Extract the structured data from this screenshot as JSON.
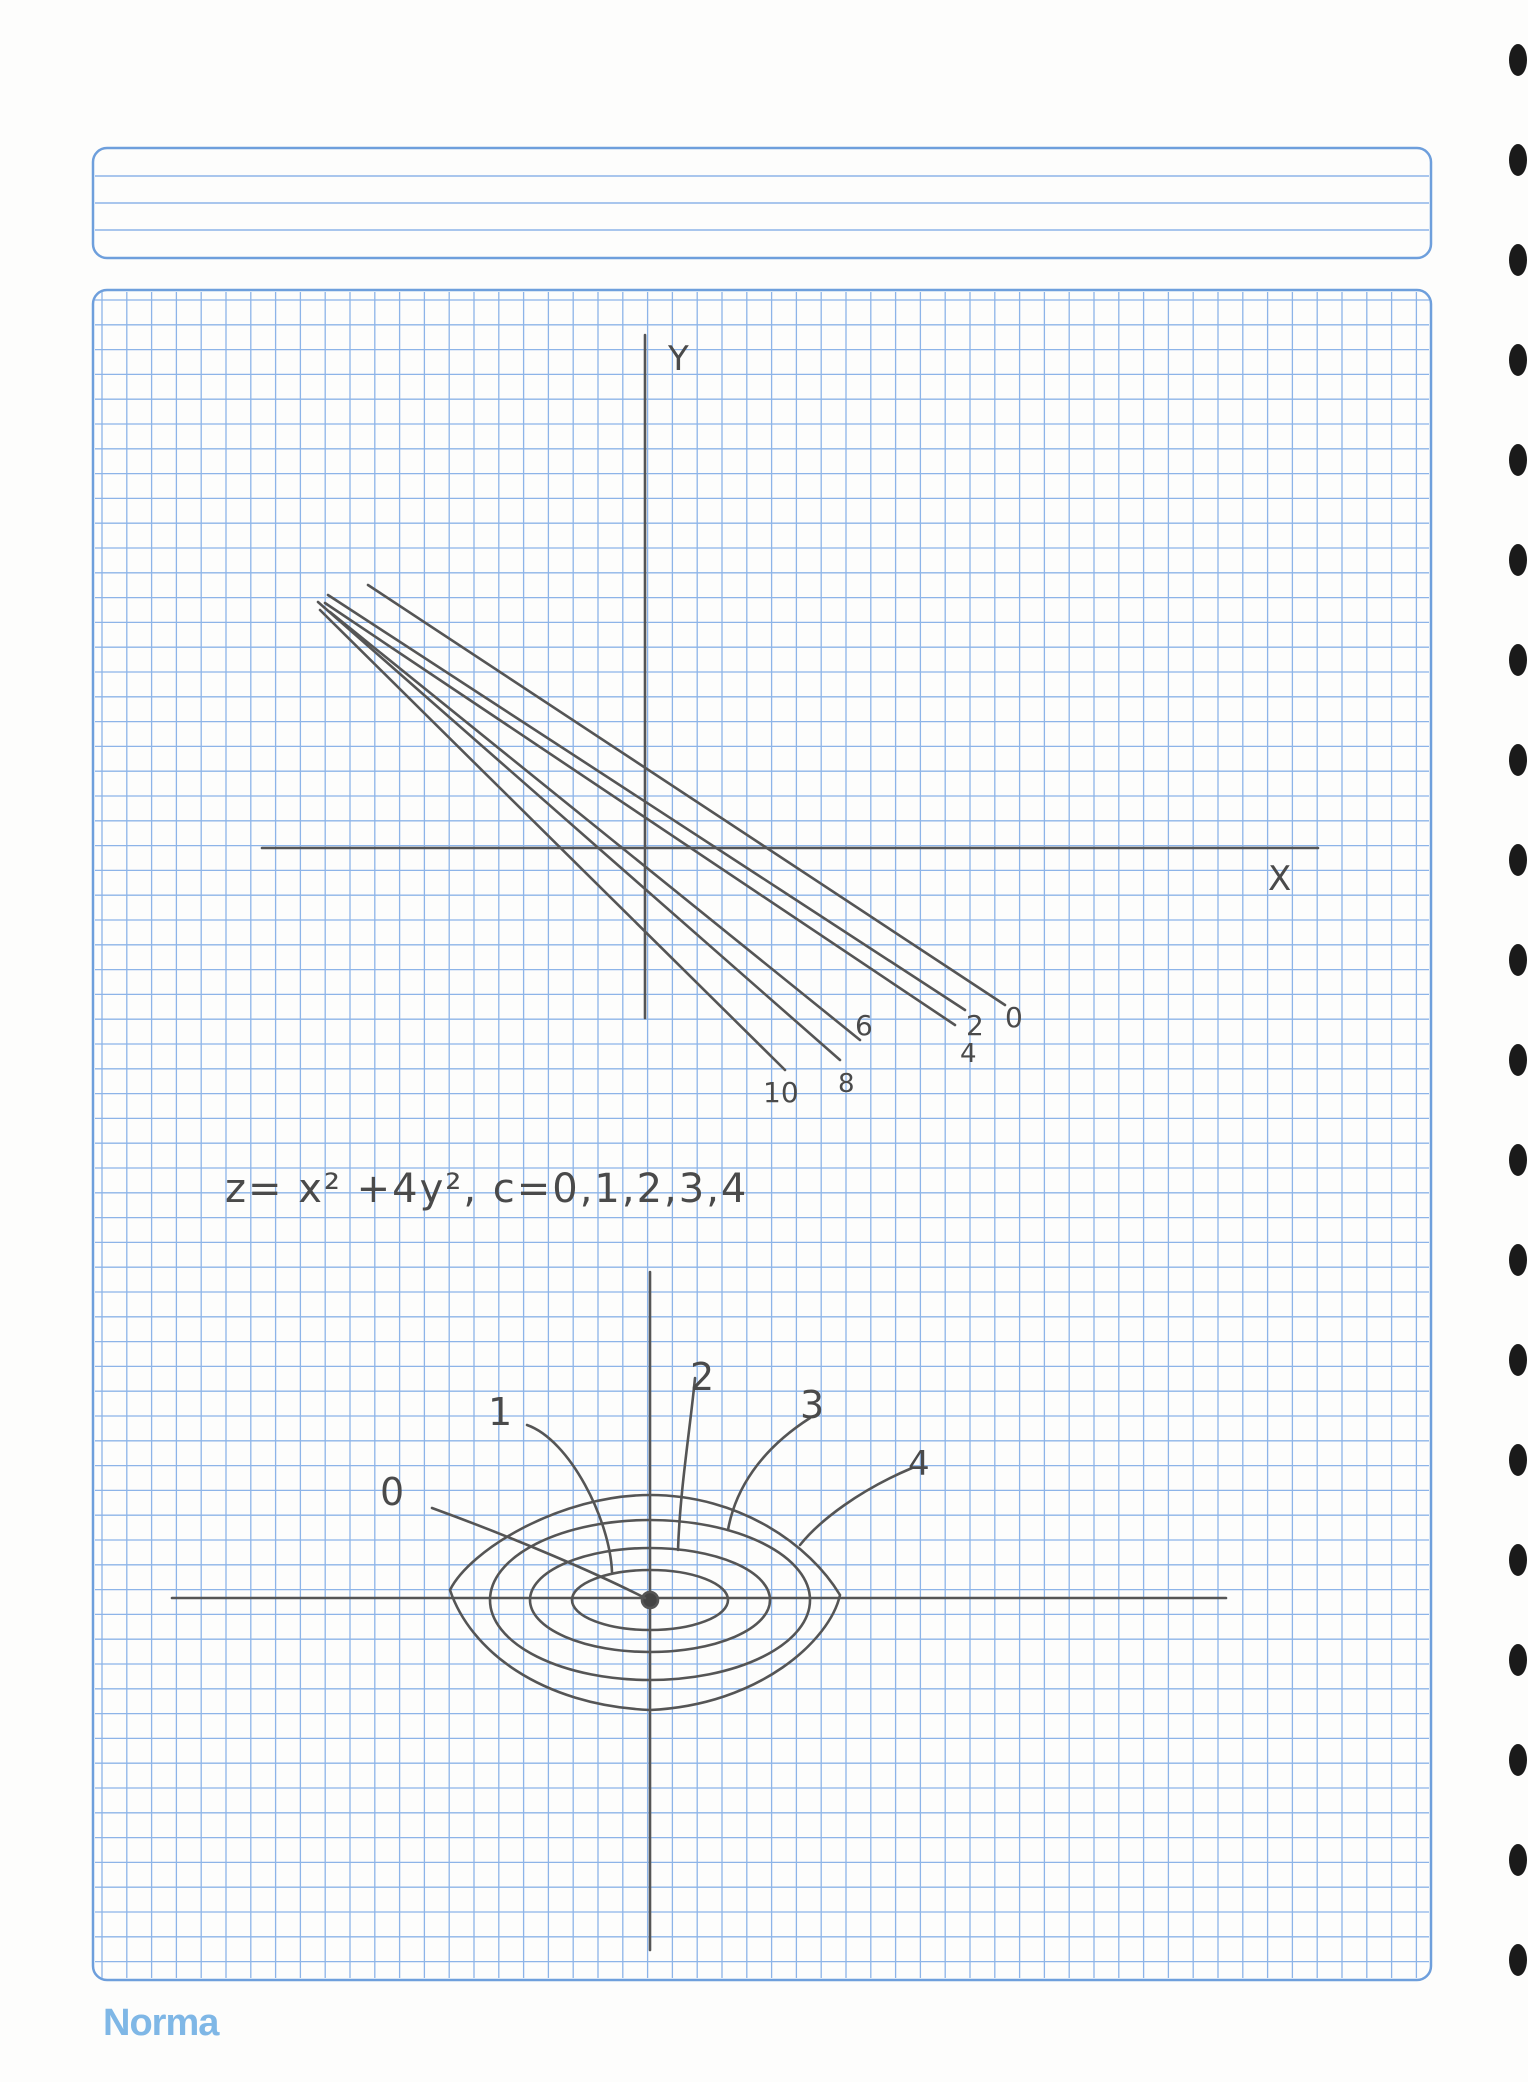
{
  "notebook": {
    "header_title": "",
    "brand": "Norma",
    "colors": {
      "grid": "#8db4e8",
      "frame": "#6e9fdc",
      "pencil": "#4a4a4a",
      "brand": "#7fb7e6"
    }
  },
  "sketch1": {
    "axis_x_label": "X",
    "axis_y_label": "Y",
    "level_labels": [
      "0",
      "2",
      "4",
      "6",
      "8",
      "10"
    ]
  },
  "sketch2": {
    "equation": "z= x² +4y², c=0,1,2,3,4",
    "level_labels": [
      "0",
      "1",
      "2",
      "3",
      "4"
    ]
  }
}
